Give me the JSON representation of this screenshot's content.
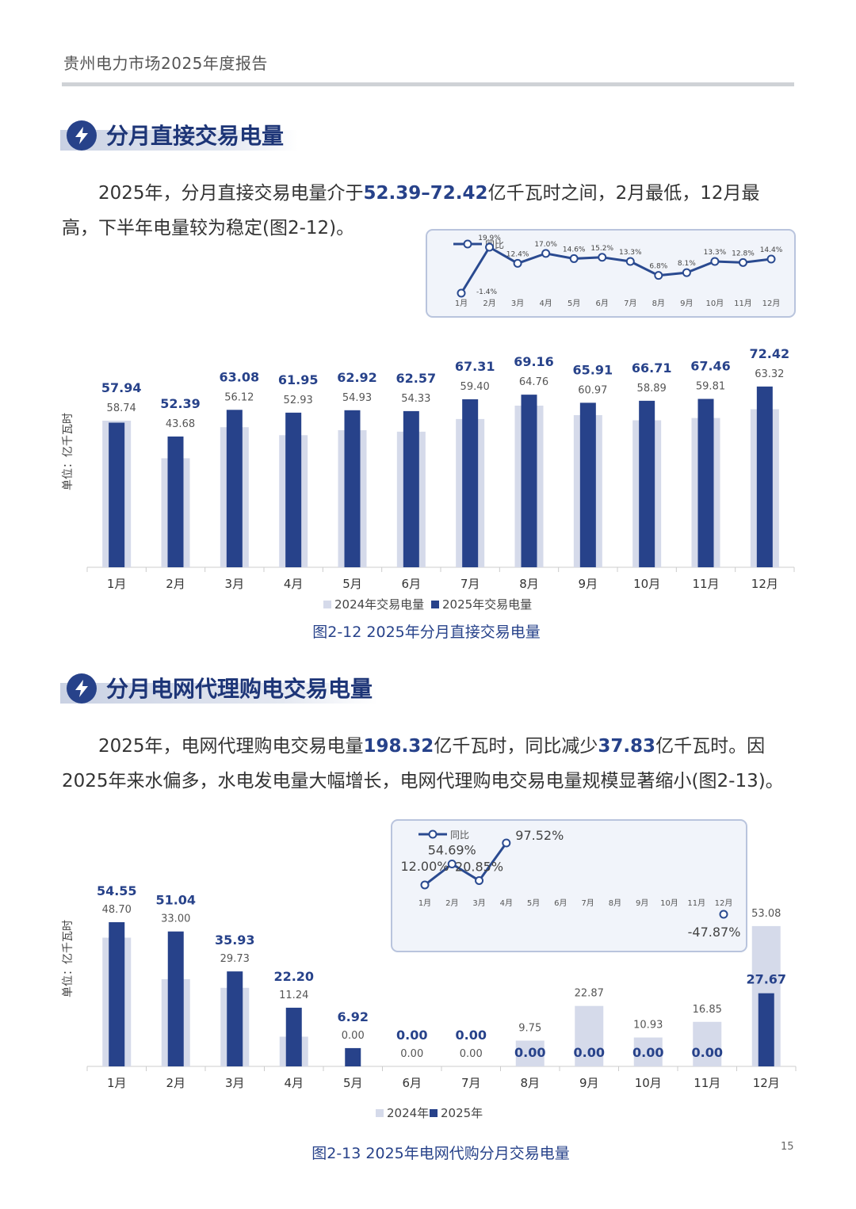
{
  "header": {
    "title": "贵州电力市场2025年度报告"
  },
  "section1": {
    "title": "分月直接交易电量",
    "para": [
      "2025年，分月直接交易电量介于",
      "52.39–72.42",
      "亿千瓦时之间，2月最低，12月最高，下半年电量较为稳定(图2-12)。"
    ],
    "caption": "图2-12  2025年分月直接交易电量"
  },
  "section2": {
    "title": "分月电网代理购电交易电量",
    "para": [
      "2025年，电网代理购电交易电量",
      "198.32",
      "亿千瓦时，同比减少",
      "37.83",
      "亿千瓦时。因2025年来水偏多，水电发电量大幅增长，电网代理购电交易电量规模显著缩小(图2-13)。"
    ],
    "caption": "图2-13  2025年电网代购分月交易电量"
  },
  "page_number": "15",
  "colors": {
    "dark": "#27428a",
    "light": "#d5daea",
    "line": "#2a4a90"
  },
  "chart_data": [
    {
      "type": "bar",
      "categories": [
        "1月",
        "2月",
        "3月",
        "4月",
        "5月",
        "6月",
        "7月",
        "8月",
        "9月",
        "10月",
        "11月",
        "12月"
      ],
      "ylabel": "单位：亿千瓦时",
      "series": [
        {
          "name": "2024年交易电量",
          "values": [
            58.74,
            43.68,
            56.12,
            52.93,
            54.93,
            54.33,
            59.4,
            64.76,
            60.97,
            58.89,
            59.81,
            63.32
          ],
          "labels": [
            "58.74",
            "43.68",
            "56.12",
            "52.93",
            "54.93",
            "54.33",
            "59.40",
            "64.76",
            "60.97",
            "58.89",
            "59.81",
            "63.32"
          ]
        },
        {
          "name": "2025年交易电量",
          "values": [
            57.94,
            52.39,
            63.08,
            61.95,
            62.92,
            62.57,
            67.31,
            69.16,
            65.91,
            66.71,
            67.46,
            72.42
          ],
          "labels": [
            "57.94",
            "52.39",
            "63.08",
            "61.95",
            "62.92",
            "62.57",
            "67.31",
            "69.16",
            "65.91",
            "66.71",
            "67.46",
            "72.42"
          ]
        }
      ],
      "inset": {
        "type": "line",
        "legend": "同比",
        "values": [
          -1.4,
          19.9,
          12.4,
          17.0,
          14.6,
          15.2,
          13.3,
          6.8,
          8.1,
          13.3,
          12.8,
          14.4
        ],
        "labels": [
          "-1.4%",
          "19.9%",
          "12.4%",
          "17.0%",
          "14.6%",
          "15.2%",
          "13.3%",
          "6.8%",
          "8.1%",
          "13.3%",
          "12.8%",
          "14.4%"
        ]
      }
    },
    {
      "type": "bar",
      "categories": [
        "1月",
        "2月",
        "3月",
        "4月",
        "5月",
        "6月",
        "7月",
        "8月",
        "9月",
        "10月",
        "11月",
        "12月"
      ],
      "ylabel": "单位：亿千瓦时",
      "series": [
        {
          "name": "2024年",
          "values": [
            48.7,
            33.0,
            29.73,
            11.24,
            0.0,
            0.0,
            0.0,
            9.75,
            22.87,
            10.93,
            16.85,
            53.08
          ],
          "labels": [
            "48.70",
            "33.00",
            "29.73",
            "11.24",
            "0.00",
            "0.00",
            "0.00",
            "9.75",
            "22.87",
            "10.93",
            "16.85",
            "53.08"
          ]
        },
        {
          "name": "2025年",
          "values": [
            54.55,
            51.04,
            35.93,
            22.2,
            6.92,
            0.0,
            0.0,
            0.0,
            0.0,
            0.0,
            0.0,
            27.67
          ],
          "labels": [
            "54.55",
            "51.04",
            "35.93",
            "22.20",
            "6.92",
            "0.00",
            "0.00",
            "0.00",
            "0.00",
            "0.00",
            "0.00",
            "27.67"
          ]
        }
      ],
      "inset": {
        "type": "line",
        "legend": "同比",
        "values": [
          12.0,
          54.69,
          20.85,
          97.52,
          null,
          null,
          null,
          null,
          null,
          null,
          null,
          -47.87
        ],
        "labels": [
          "12.00%",
          "54.69%",
          "20.85%",
          "97.52%",
          "",
          "",
          "",
          "",
          "",
          "",
          "",
          "-47.87%"
        ]
      }
    }
  ]
}
